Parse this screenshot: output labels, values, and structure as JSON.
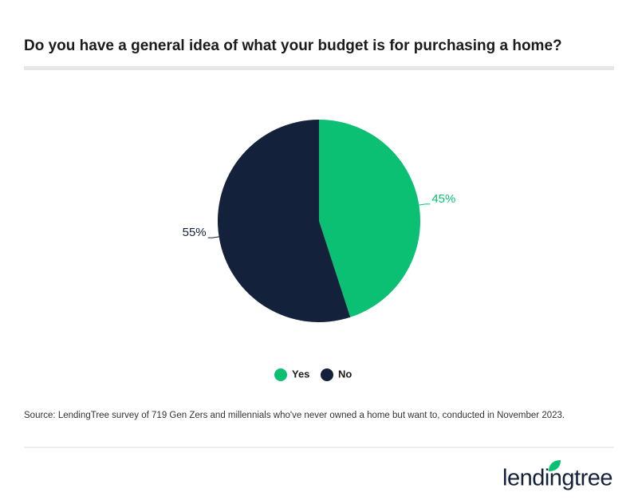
{
  "chart_data": {
    "type": "pie",
    "title": "Do you have a general idea of what your budget is for purchasing a home?",
    "categories": [
      "Yes",
      "No"
    ],
    "values": [
      45,
      55
    ],
    "value_labels": [
      "45%",
      "55%"
    ],
    "colors": [
      "#0bbf73",
      "#13213a"
    ],
    "legend": "bottom",
    "source": "Source: LendingTree survey of 719 Gen Zers and millennials who've never owned a home but want to, conducted in November 2023.",
    "brand": "lendingtree"
  }
}
